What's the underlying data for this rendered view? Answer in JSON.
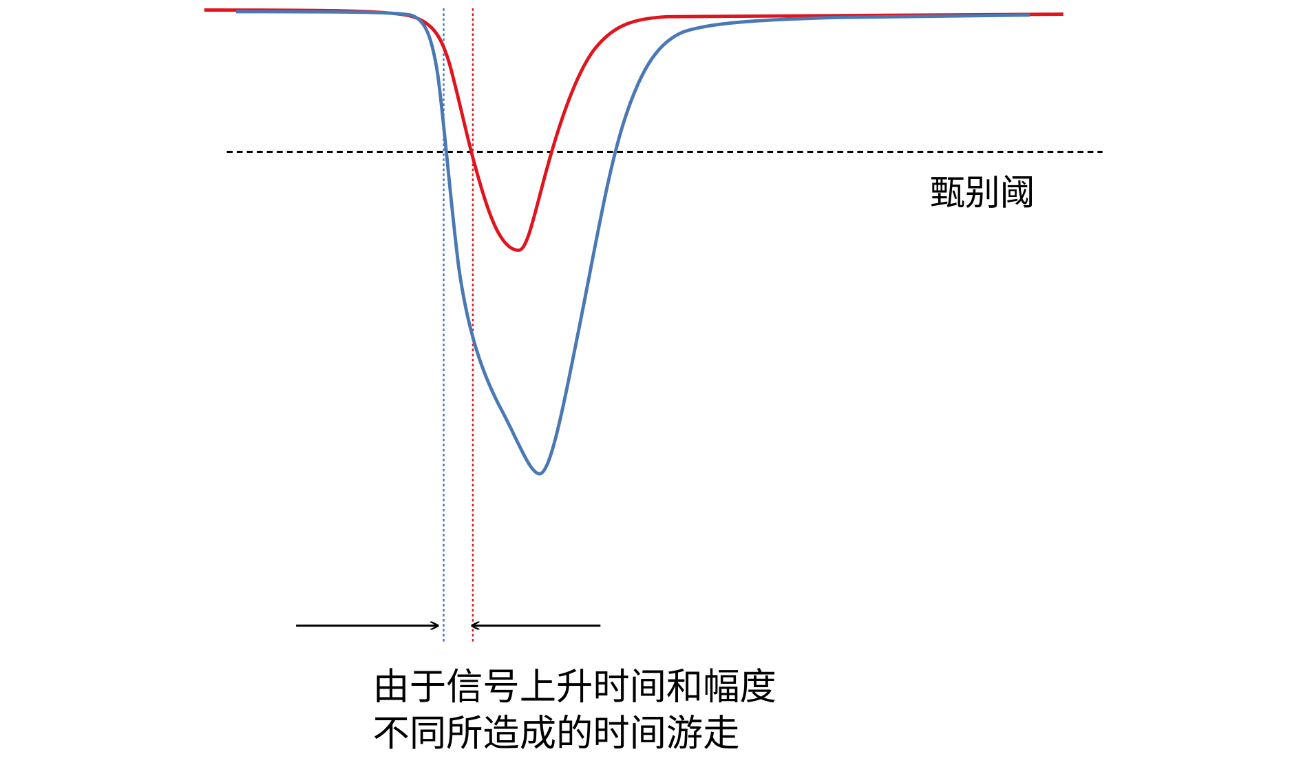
{
  "threshold_label": "甄别阈",
  "caption": {
    "lines": [
      "由于信号上升时间和幅度",
      "不同所造成的时间游走"
    ]
  }
}
